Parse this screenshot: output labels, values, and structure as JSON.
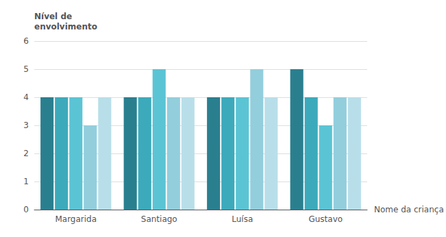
{
  "chart_data": {
    "type": "bar",
    "categories": [
      "Margarida",
      "Santiago",
      "Luísa",
      "Gustavo"
    ],
    "series": [
      {
        "color": "#2a7f8f",
        "values": [
          4,
          4,
          4,
          5
        ]
      },
      {
        "color": "#3caabb",
        "values": [
          4,
          4,
          4,
          4
        ]
      },
      {
        "color": "#5bc4d4",
        "values": [
          4,
          5,
          4,
          3
        ]
      },
      {
        "color": "#93cedd",
        "values": [
          3,
          4,
          5,
          4
        ]
      },
      {
        "color": "#b8dfe9",
        "values": [
          4,
          4,
          4,
          4
        ]
      }
    ],
    "ylabel": "Nível de\nenvolvimento",
    "xlabel": "Nome da criança",
    "ylim": [
      0,
      6
    ],
    "yticks": [
      0,
      1,
      2,
      3,
      4,
      5,
      6
    ],
    "grid": true
  }
}
